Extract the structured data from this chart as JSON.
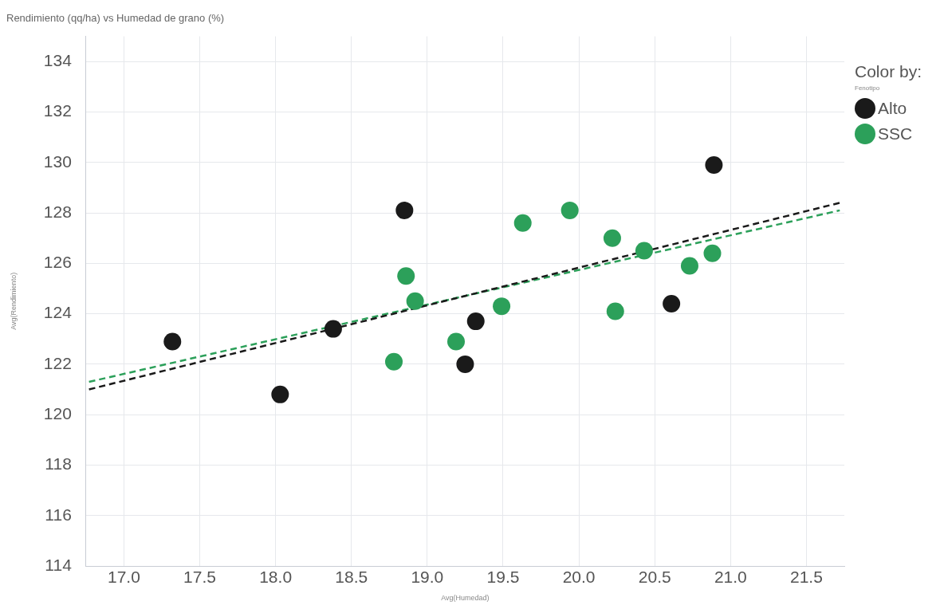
{
  "chart_data": {
    "type": "scatter",
    "title": "Rendimiento (qq/ha) vs Humedad de grano (%)",
    "xlabel": "Avg(Humedad)",
    "ylabel": "Avg(Rendimiento)",
    "legend_title": "Color by:",
    "annotations": [
      "Fenotipo"
    ],
    "xlim": [
      16.75,
      21.75
    ],
    "xticks": [
      {
        "value": 17,
        "label": "17.0"
      },
      17.5,
      {
        "value": 18,
        "label": "18.0"
      },
      18.5,
      {
        "value": 19,
        "label": "19.0"
      },
      19.5,
      {
        "value": 20,
        "label": "20.0"
      },
      20.5,
      {
        "value": 21,
        "label": "21.0"
      },
      21.5
    ],
    "ylim": [
      114,
      135
    ],
    "yticks": [
      114,
      116,
      118,
      120,
      122,
      124,
      126,
      128,
      130,
      132,
      134
    ],
    "grid": true,
    "legend": "top right",
    "marker": "circle",
    "series": [
      {
        "name": "Alto",
        "color": "#1a1a1a",
        "x": [
          17.32,
          18.03,
          18.38,
          18.85,
          19.25,
          19.32,
          20.61,
          20.89
        ],
        "values": [
          122.9,
          120.8,
          123.4,
          128.1,
          122.0,
          123.7,
          124.4,
          129.9
        ]
      },
      {
        "name": "SSC",
        "color": "#2ca05a",
        "x": [
          18.78,
          18.86,
          18.92,
          19.19,
          19.49,
          19.63,
          19.94,
          20.22,
          20.24,
          20.43,
          20.73,
          20.88
        ],
        "values": [
          122.1,
          125.5,
          124.5,
          122.9,
          124.3,
          127.6,
          128.1,
          127.0,
          124.1,
          126.5,
          125.9,
          126.4
        ]
      },
      {
        "type": "line",
        "color": "#1a1a1a",
        "line_style": "dashed",
        "marker": "none",
        "x": [
          16.77,
          21.72
        ],
        "values": [
          121.0,
          128.4
        ]
      },
      {
        "type": "line",
        "color": "#2ca05a",
        "line_style": "dashed",
        "marker": "none",
        "x": [
          16.77,
          21.72
        ],
        "values": [
          121.3,
          128.1
        ]
      }
    ]
  }
}
